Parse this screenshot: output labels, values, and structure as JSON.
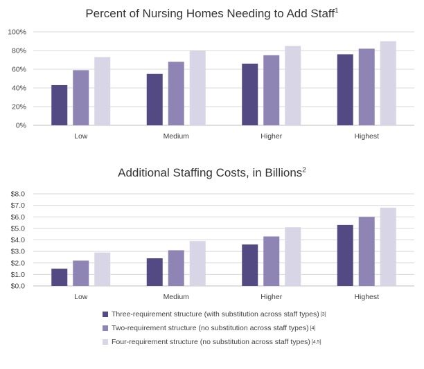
{
  "colors": {
    "three": "#534a84",
    "two": "#8f85b5",
    "four": "#d8d5e6",
    "grid": "#d9d9d9",
    "axis": "#bfbfbf"
  },
  "chart_data": [
    {
      "type": "bar",
      "title": "Percent of Nursing Homes Needing to Add Staff",
      "title_note": "1",
      "categories": [
        "Low",
        "Medium",
        "Higher",
        "Highest"
      ],
      "y_ticks": [
        "0%",
        "20%",
        "40%",
        "60%",
        "80%",
        "100%"
      ],
      "ylim": [
        0,
        100
      ],
      "grid": true,
      "series": [
        {
          "key": "three",
          "values": [
            43,
            55,
            66,
            76
          ]
        },
        {
          "key": "two",
          "values": [
            59,
            68,
            75,
            82
          ]
        },
        {
          "key": "four",
          "values": [
            73,
            80,
            85,
            90
          ]
        }
      ]
    },
    {
      "type": "bar",
      "title": "Additional Staffing Costs, in Billions",
      "title_note": "2",
      "categories": [
        "Low",
        "Medium",
        "Higher",
        "Highest"
      ],
      "y_ticks": [
        "$0.0",
        "$1.0",
        "$2.0",
        "$3.0",
        "$4.0",
        "$5.0",
        "$6.0",
        "$7.0",
        "$8.0"
      ],
      "ylim": [
        0,
        8
      ],
      "grid": true,
      "legend_position": "bottom",
      "series": [
        {
          "key": "three",
          "name": "Three-requirement structure (with substitution across staff types)",
          "note": "[3]",
          "values": [
            1.5,
            2.4,
            3.6,
            5.3
          ]
        },
        {
          "key": "two",
          "name": "Two-requirement structure (no substitution across staff types)",
          "note": "[4]",
          "values": [
            2.2,
            3.1,
            4.3,
            6.0
          ]
        },
        {
          "key": "four",
          "name": "Four-requirement structure (no substitution across staff types)",
          "note": "[4,5]",
          "values": [
            2.9,
            3.9,
            5.1,
            6.8
          ]
        }
      ]
    }
  ]
}
